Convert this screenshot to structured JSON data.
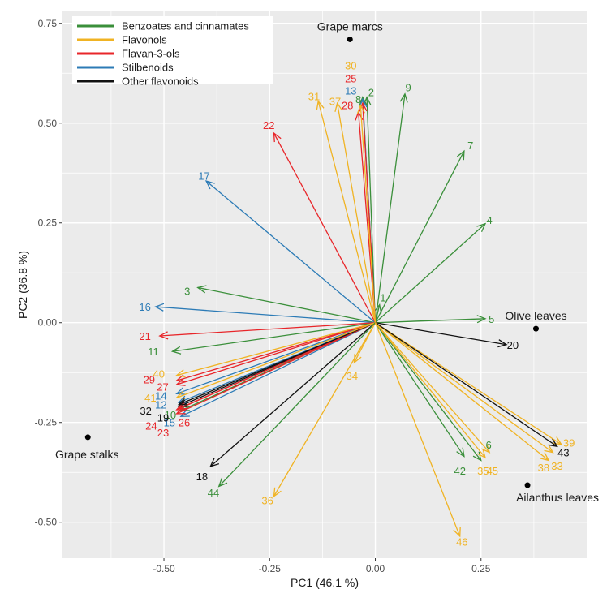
{
  "chart_data": {
    "type": "scatter",
    "subtype": "biplot",
    "xlabel": "PC1 (46.1 %)",
    "ylabel": "PC2 (36.8 %)",
    "xlim": [
      -0.74,
      0.5
    ],
    "ylim": [
      -0.59,
      0.78
    ],
    "xticks": [
      -0.5,
      -0.25,
      0.0,
      0.25
    ],
    "xtick_labels": [
      "-0.50",
      "-0.25",
      "0.00",
      "0.25"
    ],
    "yticks": [
      -0.5,
      -0.25,
      0.0,
      0.25,
      0.5,
      0.75
    ],
    "ytick_labels": [
      "-0.50",
      "-0.25",
      "0.00",
      "0.25",
      "0.50",
      "0.75"
    ],
    "legend_position": "top-left",
    "groups": [
      {
        "key": "benz",
        "name": "Benzoates and cinnamates",
        "color": "#3a8f3a"
      },
      {
        "key": "flavonol",
        "name": "Flavonols",
        "color": "#f0b323"
      },
      {
        "key": "flavan",
        "name": "Flavan-3-ols",
        "color": "#e8262a"
      },
      {
        "key": "stilb",
        "name": "Stilbenoids",
        "color": "#2c7bb6"
      },
      {
        "key": "other",
        "name": "Other flavonoids",
        "color": "#111111"
      }
    ],
    "samples": [
      {
        "name": "Grape marcs",
        "x": -0.06,
        "y": 0.71,
        "label_pos": "above"
      },
      {
        "name": "Olive leaves",
        "x": 0.38,
        "y": -0.015,
        "label_pos": "above"
      },
      {
        "name": "Grape stalks",
        "x": -0.68,
        "y": -0.287,
        "label_pos": "below"
      },
      {
        "name": "Ailanthus leaves",
        "x": 0.36,
        "y": -0.407,
        "label_pos": "below-right"
      }
    ],
    "vectors": [
      {
        "id": "1",
        "group": "benz",
        "x": 0.01,
        "y": 0.045,
        "lx": 0.018,
        "ly": 0.063
      },
      {
        "id": "2",
        "group": "benz",
        "x": -0.02,
        "y": 0.565,
        "lx": -0.01,
        "ly": 0.578
      },
      {
        "id": "3",
        "group": "benz",
        "x": -0.42,
        "y": 0.088,
        "lx": -0.445,
        "ly": 0.08
      },
      {
        "id": "4",
        "group": "benz",
        "x": 0.26,
        "y": 0.248,
        "lx": 0.27,
        "ly": 0.258
      },
      {
        "id": "5",
        "group": "benz",
        "x": 0.26,
        "y": 0.01,
        "lx": 0.275,
        "ly": 0.01
      },
      {
        "id": "6",
        "group": "benz",
        "x": 0.25,
        "y": -0.345,
        "lx": 0.268,
        "ly": -0.305
      },
      {
        "id": "7",
        "group": "benz",
        "x": 0.21,
        "y": 0.43,
        "lx": 0.225,
        "ly": 0.445
      },
      {
        "id": "8",
        "group": "benz",
        "x": -0.03,
        "y": 0.565,
        "lx": -0.04,
        "ly": 0.56
      },
      {
        "id": "9",
        "group": "benz",
        "x": 0.07,
        "y": 0.573,
        "lx": 0.078,
        "ly": 0.59
      },
      {
        "id": "10",
        "group": "benz",
        "x": -0.46,
        "y": -0.22,
        "lx": -0.485,
        "ly": -0.23
      },
      {
        "id": "11",
        "group": "benz",
        "x": -0.48,
        "y": -0.072,
        "lx": -0.525,
        "ly": -0.072
      },
      {
        "id": "12",
        "group": "stilb",
        "x": -0.465,
        "y": -0.2,
        "lx": -0.507,
        "ly": -0.205
      },
      {
        "id": "13",
        "group": "stilb",
        "x": -0.03,
        "y": 0.56,
        "lx": -0.058,
        "ly": 0.582
      },
      {
        "id": "14",
        "group": "stilb",
        "x": -0.47,
        "y": -0.178,
        "lx": -0.507,
        "ly": -0.182
      },
      {
        "id": "15",
        "group": "stilb",
        "x": -0.46,
        "y": -0.235,
        "lx": -0.487,
        "ly": -0.25
      },
      {
        "id": "16",
        "group": "stilb",
        "x": -0.52,
        "y": 0.04,
        "lx": -0.545,
        "ly": 0.04
      },
      {
        "id": "17",
        "group": "stilb",
        "x": -0.4,
        "y": 0.355,
        "lx": -0.405,
        "ly": 0.368
      },
      {
        "id": "18",
        "group": "other",
        "x": -0.39,
        "y": -0.36,
        "lx": -0.41,
        "ly": -0.385
      },
      {
        "id": "19",
        "group": "other",
        "x": -0.465,
        "y": -0.21,
        "lx": -0.502,
        "ly": -0.237
      },
      {
        "id": "20",
        "group": "other",
        "x": 0.31,
        "y": -0.055,
        "lx": 0.325,
        "ly": -0.055
      },
      {
        "id": "21",
        "group": "flavan",
        "x": -0.51,
        "y": -0.033,
        "lx": -0.545,
        "ly": -0.033
      },
      {
        "id": "22",
        "group": "flavan",
        "x": -0.24,
        "y": 0.475,
        "lx": -0.252,
        "ly": 0.495
      },
      {
        "id": "23",
        "group": "flavan",
        "x": -0.47,
        "y": -0.228,
        "lx": -0.502,
        "ly": -0.275
      },
      {
        "id": "24",
        "group": "flavan",
        "x": -0.47,
        "y": -0.218,
        "lx": -0.53,
        "ly": -0.258
      },
      {
        "id": "25",
        "group": "flavan",
        "x": -0.03,
        "y": 0.55,
        "lx": -0.058,
        "ly": 0.612
      },
      {
        "id": "26",
        "group": "flavan",
        "x": -0.465,
        "y": -0.215,
        "lx": -0.452,
        "ly": -0.25
      },
      {
        "id": "27",
        "group": "flavan",
        "x": -0.47,
        "y": -0.155,
        "lx": -0.503,
        "ly": -0.16
      },
      {
        "id": "28",
        "group": "flavan",
        "x": -0.04,
        "y": 0.528,
        "lx": -0.066,
        "ly": 0.545
      },
      {
        "id": "29",
        "group": "flavan",
        "x": -0.47,
        "y": -0.145,
        "lx": -0.535,
        "ly": -0.142
      },
      {
        "id": "30",
        "group": "flavonol",
        "x": -0.035,
        "y": 0.545,
        "lx": -0.058,
        "ly": 0.645
      },
      {
        "id": "31",
        "group": "flavonol",
        "x": -0.135,
        "y": 0.555,
        "lx": -0.145,
        "ly": 0.568
      },
      {
        "id": "32",
        "group": "other",
        "x": -0.465,
        "y": -0.205,
        "lx": -0.543,
        "ly": -0.22
      },
      {
        "id": "33",
        "group": "flavonol",
        "x": 0.42,
        "y": -0.325,
        "lx": 0.43,
        "ly": -0.358
      },
      {
        "id": "34",
        "group": "flavonol",
        "x": -0.05,
        "y": -0.1,
        "lx": -0.055,
        "ly": -0.133
      },
      {
        "id": "35",
        "group": "flavonol",
        "x": 0.27,
        "y": -0.325,
        "lx": 0.255,
        "ly": -0.37
      },
      {
        "id": "36",
        "group": "flavonol",
        "x": -0.24,
        "y": -0.435,
        "lx": -0.255,
        "ly": -0.445
      },
      {
        "id": "37",
        "group": "flavonol",
        "x": -0.09,
        "y": 0.55,
        "lx": -0.095,
        "ly": 0.555
      },
      {
        "id": "38",
        "group": "flavonol",
        "x": 0.41,
        "y": -0.345,
        "lx": 0.398,
        "ly": -0.362
      },
      {
        "id": "39",
        "group": "flavonol",
        "x": 0.44,
        "y": -0.305,
        "lx": 0.458,
        "ly": -0.3
      },
      {
        "id": "40",
        "group": "flavonol",
        "x": -0.47,
        "y": -0.132,
        "lx": -0.512,
        "ly": -0.128
      },
      {
        "id": "41",
        "group": "flavonol",
        "x": -0.47,
        "y": -0.188,
        "lx": -0.532,
        "ly": -0.188
      },
      {
        "id": "42",
        "group": "benz",
        "x": 0.21,
        "y": -0.335,
        "lx": 0.2,
        "ly": -0.37
      },
      {
        "id": "43",
        "group": "other",
        "x": 0.43,
        "y": -0.31,
        "lx": 0.445,
        "ly": -0.325
      },
      {
        "id": "44",
        "group": "benz",
        "x": -0.37,
        "y": -0.41,
        "lx": -0.383,
        "ly": -0.425
      },
      {
        "id": "45",
        "group": "flavonol",
        "x": 0.26,
        "y": -0.338,
        "lx": 0.277,
        "ly": -0.37
      },
      {
        "id": "46",
        "group": "flavonol",
        "x": 0.2,
        "y": -0.535,
        "lx": 0.205,
        "ly": -0.548
      }
    ]
  }
}
